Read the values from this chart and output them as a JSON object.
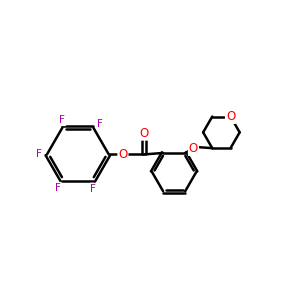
{
  "background": "#ffffff",
  "bond_color": "#000000",
  "bond_width": 1.8,
  "F_color": "#aa00aa",
  "O_color": "#ff0000",
  "font_size_F": 7.5,
  "font_size_O": 8.5,
  "xlim": [
    0,
    10
  ],
  "ylim": [
    1,
    9
  ]
}
